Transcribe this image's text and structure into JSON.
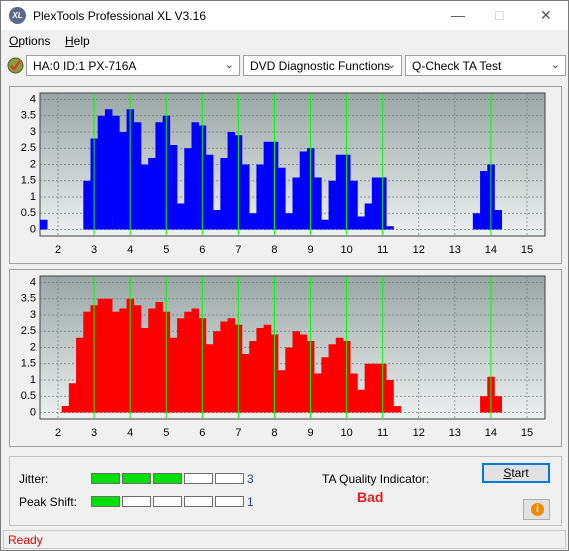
{
  "window": {
    "title": "PlexTools Professional XL V3.16"
  },
  "menu": [
    "Options",
    "Help"
  ],
  "toolbar": {
    "drive": "HA:0 ID:1  PX-716A",
    "function": "DVD Diagnostic Functions",
    "test": "Q-Check TA Test"
  },
  "charts": [
    {
      "type": "bar",
      "color": "#0000ff",
      "x": [
        1.6,
        1.8,
        2.0,
        2.2,
        2.4,
        2.6,
        2.8,
        3.0,
        3.2,
        3.4,
        3.6,
        3.8,
        4.0,
        4.2,
        4.4,
        4.6,
        4.8,
        5.0,
        5.2,
        5.4,
        5.6,
        5.8,
        6.0,
        6.2,
        6.4,
        6.6,
        6.8,
        7.0,
        7.2,
        7.4,
        7.6,
        7.8,
        8.0,
        8.2,
        8.4,
        8.6,
        8.8,
        9.0,
        9.2,
        9.4,
        9.6,
        9.8,
        10.0,
        10.2,
        10.4,
        10.6,
        10.8,
        11.0,
        11.2,
        11.4,
        11.6,
        11.8,
        12.0,
        12.2,
        12.4,
        12.6,
        12.8,
        13.0,
        13.2,
        13.4,
        13.6,
        13.8,
        14.0,
        14.2,
        14.4,
        14.6,
        14.8,
        15.0,
        15.2,
        15.4
      ],
      "values": [
        0.3,
        0,
        0,
        0,
        0,
        0,
        1.5,
        2.8,
        3.5,
        3.7,
        3.5,
        3.0,
        3.7,
        3.3,
        2.0,
        2.2,
        3.3,
        3.5,
        2.6,
        0.8,
        2.5,
        3.3,
        3.2,
        2.3,
        0.6,
        2.2,
        3.0,
        2.9,
        2.0,
        0.5,
        2.0,
        2.7,
        2.7,
        1.9,
        0.5,
        1.6,
        2.4,
        2.5,
        1.6,
        0.3,
        1.5,
        2.3,
        2.3,
        1.5,
        0.4,
        0.8,
        1.6,
        1.6,
        0.1,
        0,
        0,
        0,
        0,
        0,
        0,
        0,
        0,
        0,
        0,
        0,
        0.5,
        1.8,
        2.0,
        0.6,
        0,
        0,
        0,
        0,
        0,
        0
      ],
      "xlim": [
        1.5,
        15.5
      ],
      "ylim": [
        -0.2,
        4.2
      ],
      "xticks": [
        2,
        3,
        4,
        5,
        6,
        7,
        8,
        9,
        10,
        11,
        12,
        13,
        14,
        15
      ],
      "yticks": [
        0,
        0.5,
        1,
        1.5,
        2,
        2.5,
        3,
        3.5,
        4
      ],
      "markers": [
        3,
        4,
        5,
        6,
        7,
        8,
        9,
        10,
        11,
        14
      ],
      "marker_color": "#00ff00",
      "grid": true
    },
    {
      "type": "bar",
      "color": "#ff0000",
      "x": [
        1.6,
        1.8,
        2.0,
        2.2,
        2.4,
        2.6,
        2.8,
        3.0,
        3.2,
        3.4,
        3.6,
        3.8,
        4.0,
        4.2,
        4.4,
        4.6,
        4.8,
        5.0,
        5.2,
        5.4,
        5.6,
        5.8,
        6.0,
        6.2,
        6.4,
        6.6,
        6.8,
        7.0,
        7.2,
        7.4,
        7.6,
        7.8,
        8.0,
        8.2,
        8.4,
        8.6,
        8.8,
        9.0,
        9.2,
        9.4,
        9.6,
        9.8,
        10.0,
        10.2,
        10.4,
        10.6,
        10.8,
        11.0,
        11.2,
        11.4,
        11.6,
        11.8,
        12.0,
        12.2,
        12.4,
        12.6,
        12.8,
        13.0,
        13.2,
        13.4,
        13.6,
        13.8,
        14.0,
        14.2,
        14.4,
        14.6,
        14.8,
        15.0,
        15.2,
        15.4
      ],
      "values": [
        0,
        0,
        0,
        0.2,
        0.9,
        2.3,
        3.1,
        3.3,
        3.5,
        3.5,
        3.1,
        3.2,
        3.5,
        3.3,
        2.6,
        3.2,
        3.4,
        3.1,
        2.3,
        2.9,
        3.1,
        3.2,
        2.9,
        2.1,
        2.5,
        2.8,
        2.9,
        2.7,
        1.8,
        2.2,
        2.6,
        2.7,
        2.4,
        1.3,
        2.0,
        2.5,
        2.4,
        2.2,
        1.2,
        1.7,
        2.1,
        2.3,
        2.2,
        1.2,
        0.7,
        1.5,
        1.5,
        1.5,
        1.0,
        0.2,
        0,
        0,
        0,
        0,
        0,
        0,
        0,
        0,
        0,
        0,
        0,
        0.5,
        1.1,
        0.5,
        0,
        0,
        0,
        0,
        0,
        0
      ],
      "xlim": [
        1.5,
        15.5
      ],
      "ylim": [
        -0.2,
        4.2
      ],
      "xticks": [
        2,
        3,
        4,
        5,
        6,
        7,
        8,
        9,
        10,
        11,
        12,
        13,
        14,
        15
      ],
      "yticks": [
        0,
        0.5,
        1,
        1.5,
        2,
        2.5,
        3,
        3.5,
        4
      ],
      "markers": [
        3,
        4,
        5,
        6,
        7,
        8,
        9,
        10,
        11,
        14
      ],
      "marker_color": "#00ff00",
      "grid": true
    }
  ],
  "indicators": [
    {
      "label": "Jitter:",
      "value": 3,
      "segments": 5
    },
    {
      "label": "Peak Shift:",
      "value": 1,
      "segments": 5
    }
  ],
  "quality": {
    "label": "TA Quality Indicator:",
    "value": "Bad"
  },
  "buttons": {
    "start": "Start"
  },
  "status": "Ready"
}
